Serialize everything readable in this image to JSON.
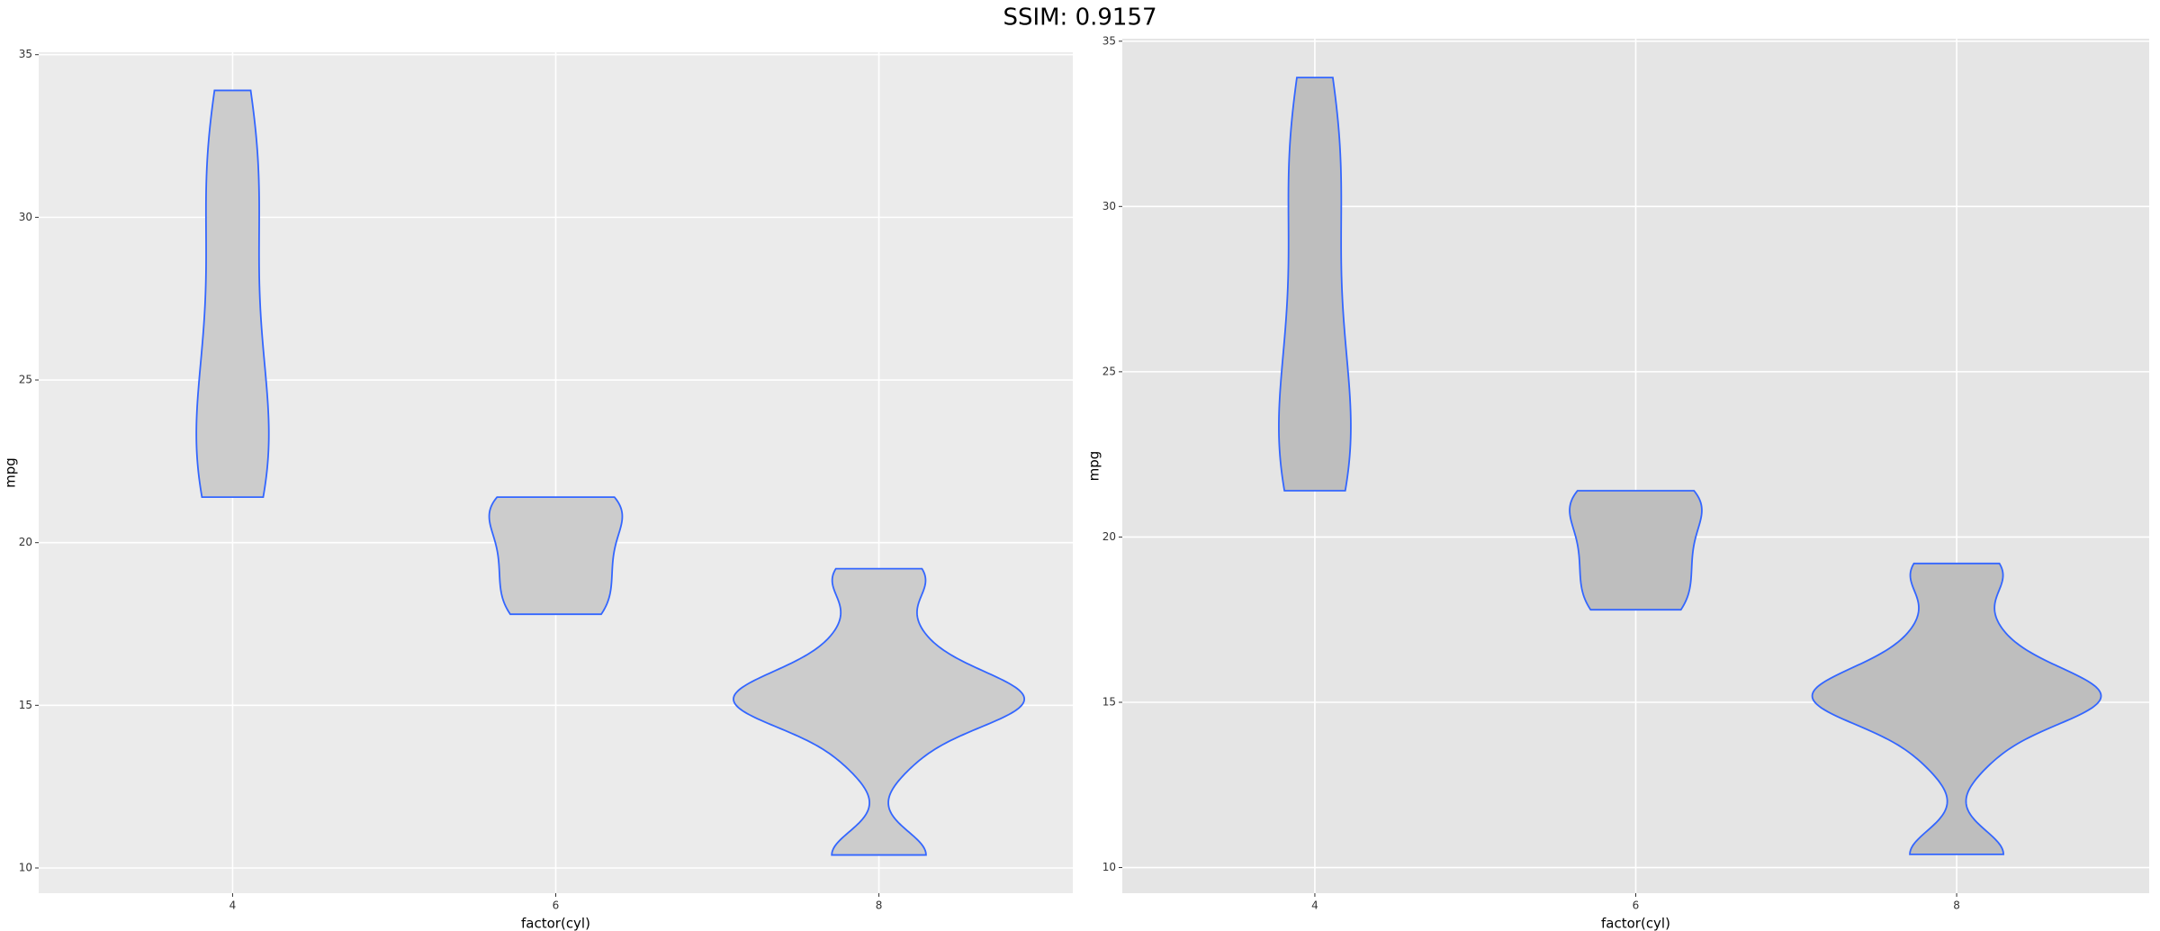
{
  "title": "SSIM: 0.9157",
  "chart_data": [
    {
      "type": "violin",
      "x_label": "factor(cyl)",
      "y_label": "mpg",
      "categories": [
        "4",
        "6",
        "8"
      ],
      "values": [
        [
          22.8,
          24.4,
          22.8,
          32.4,
          30.4,
          33.9,
          21.5,
          27.3,
          26.0,
          30.4,
          21.4
        ],
        [
          21.0,
          21.0,
          21.4,
          18.1,
          19.2,
          17.8,
          19.7
        ],
        [
          18.7,
          14.3,
          16.4,
          17.3,
          15.2,
          10.4,
          10.4,
          14.7,
          15.5,
          15.2,
          13.3,
          19.2,
          15.8,
          15.0
        ]
      ],
      "scale": "count",
      "fill": "#cccccc",
      "color": "#3366ff",
      "background": "#ebebeb",
      "ylim": [
        9.225,
        35.075
      ],
      "yticks": [
        10,
        15,
        20,
        25,
        30,
        35
      ],
      "grid": true
    },
    {
      "type": "violin",
      "x_label": "factor(cyl)",
      "y_label": "mpg",
      "categories": [
        "4",
        "6",
        "8"
      ],
      "values": [
        [
          22.8,
          24.4,
          22.8,
          32.4,
          30.4,
          33.9,
          21.5,
          27.3,
          26.0,
          30.4,
          21.4
        ],
        [
          21.0,
          21.0,
          21.4,
          18.1,
          19.2,
          17.8,
          19.7
        ],
        [
          18.7,
          14.3,
          16.4,
          17.3,
          15.2,
          10.4,
          10.4,
          14.7,
          15.5,
          15.2,
          13.3,
          19.2,
          15.8,
          15.0
        ]
      ],
      "scale": "count",
      "fill": "#bebebe",
      "color": "#3366ff",
      "background": "#e5e5e5",
      "ylim": [
        9.225,
        35.075
      ],
      "yticks": [
        10,
        15,
        20,
        25,
        30,
        35
      ],
      "grid": true
    }
  ]
}
